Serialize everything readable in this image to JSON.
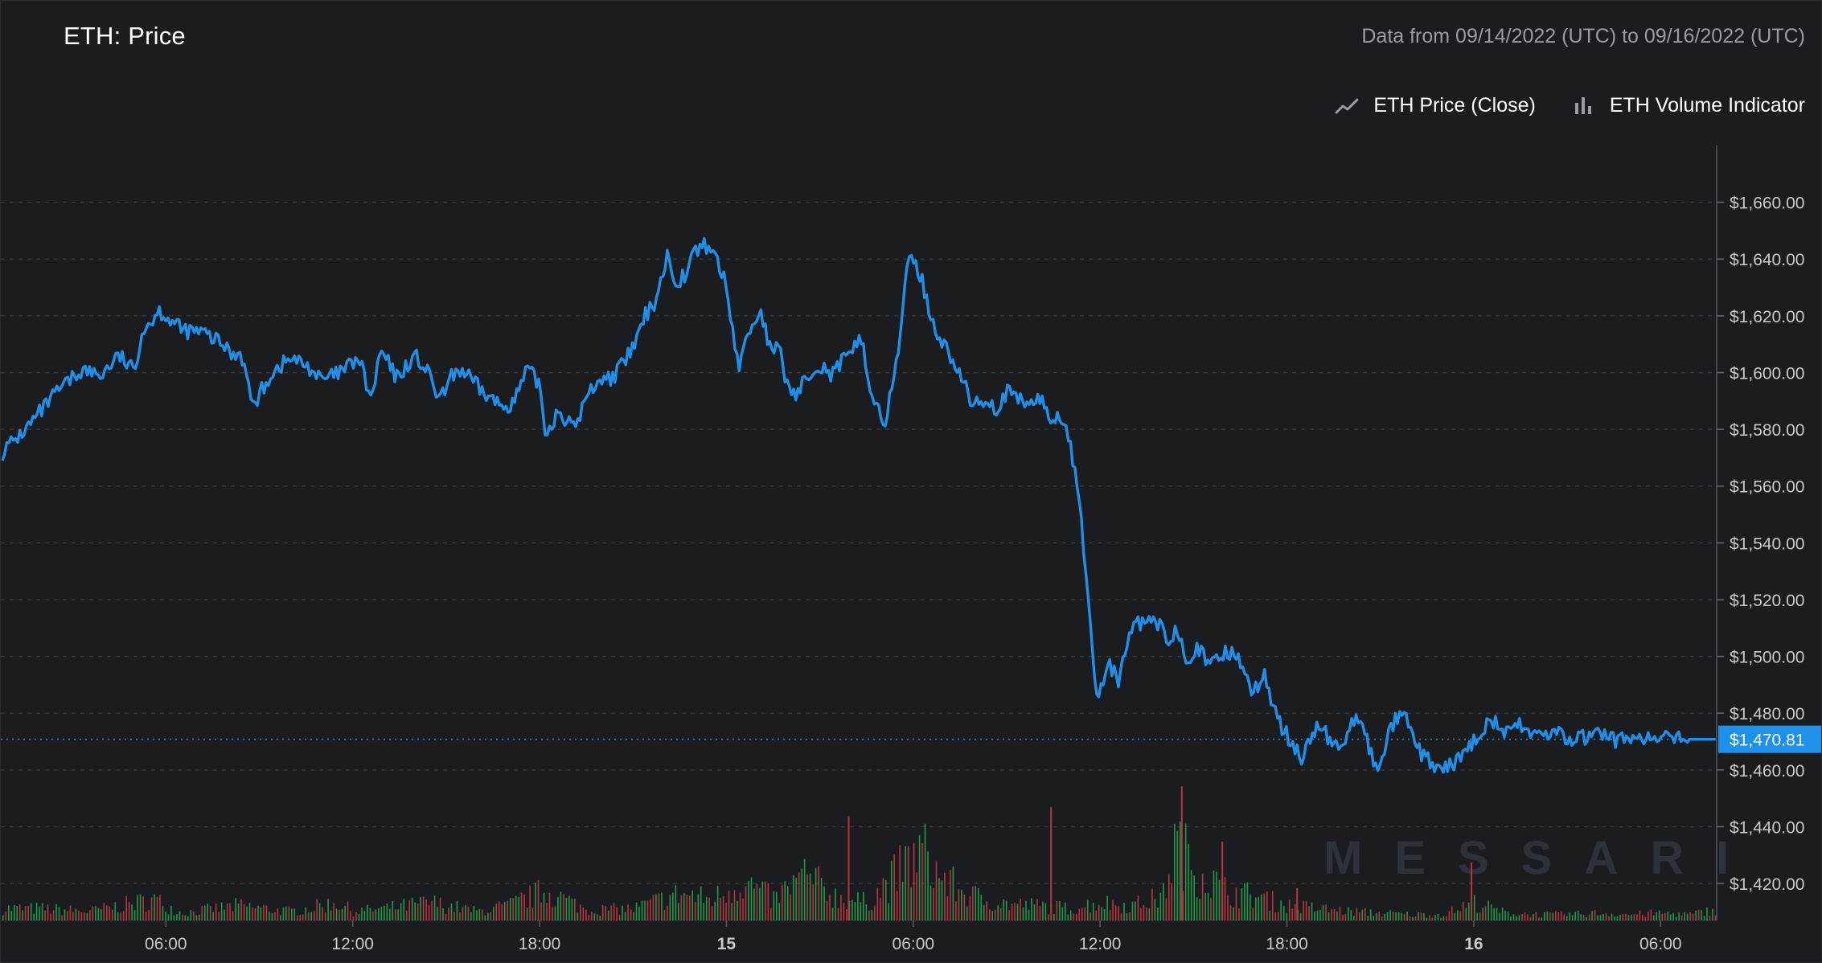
{
  "header": {
    "title": "ETH: Price",
    "range_text": "Data from 09/14/2022 (UTC) to 09/16/2022 (UTC)"
  },
  "legend": {
    "items": [
      {
        "label": "ETH Price (Close)",
        "icon": "line-chart-icon"
      },
      {
        "label": "ETH Volume Indicator",
        "icon": "bar-chart-icon"
      }
    ]
  },
  "watermark": "MESSARI",
  "colors": {
    "background": "#1b1c20",
    "price_line": "#1e90ea",
    "grid": "#3a3c43",
    "axis_text": "#c8c9cc",
    "volume_up": "#1f9a4a",
    "volume_down": "#b8363d",
    "last_price_tag": "#1e90ea"
  },
  "chart_data": {
    "type": "line",
    "y_axis": {
      "ticks": [
        "$1,660.00",
        "$1,640.00",
        "$1,620.00",
        "$1,600.00",
        "$1,580.00",
        "$1,560.00",
        "$1,540.00",
        "$1,520.00",
        "$1,500.00",
        "$1,480.00",
        "$1,460.00",
        "$1,440.00",
        "$1,420.00"
      ],
      "tick_values": [
        1660,
        1640,
        1620,
        1600,
        1580,
        1560,
        1540,
        1520,
        1500,
        1480,
        1460,
        1440,
        1420
      ],
      "range": [
        1407,
        1680
      ],
      "position": "right"
    },
    "x_axis": {
      "ticks": [
        {
          "label": "06:00",
          "hours": 6,
          "bold": false
        },
        {
          "label": "12:00",
          "hours": 12,
          "bold": false
        },
        {
          "label": "18:00",
          "hours": 18,
          "bold": false
        },
        {
          "label": "15",
          "hours": 24,
          "bold": true
        },
        {
          "label": "06:00",
          "hours": 30,
          "bold": false
        },
        {
          "label": "12:00",
          "hours": 36,
          "bold": false
        },
        {
          "label": "18:00",
          "hours": 42,
          "bold": false
        },
        {
          "label": "16",
          "hours": 48,
          "bold": true
        },
        {
          "label": "06:00",
          "hours": 54,
          "bold": false
        }
      ],
      "range_hours": [
        0.75,
        55.8
      ]
    },
    "last_price": {
      "label": "$1,470.81",
      "value": 1470.81
    },
    "grid": true,
    "series": [
      {
        "name": "ETH Price (Close)",
        "x_hours": [
          0.75,
          1.5,
          2.5,
          3.3,
          3.9,
          4.5,
          5.0,
          5.2,
          5.8,
          6.5,
          7.2,
          7.8,
          8.2,
          8.4,
          8.8,
          9.4,
          10,
          10.6,
          11,
          11.6,
          12.2,
          12.6,
          12.9,
          13.4,
          14,
          14.4,
          14.8,
          15.3,
          15.6,
          15.9,
          16.3,
          16.8,
          17.2,
          17.6,
          18.0,
          18.2,
          18.6,
          19.1,
          19.5,
          19.9,
          20.3,
          20.7,
          21.1,
          21.4,
          21.7,
          22.1,
          22.4,
          22.7,
          23.0,
          23.4,
          23.7,
          24.0,
          24.2,
          24.4,
          24.7,
          25.1,
          25.5,
          25.7,
          25.9,
          26.3,
          26.6,
          27.0,
          27.4,
          27.7,
          28.0,
          28.3,
          28.6,
          29.1,
          29.5,
          29.8,
          30.2,
          30.5,
          30.9,
          31.2,
          31.5,
          31.7,
          31.9,
          32.3,
          32.7,
          33.0,
          33.4,
          33.8,
          34.1,
          34.4,
          34.7,
          35.0,
          35.4,
          35.9,
          36.3,
          36.6,
          36.9,
          37.3,
          37.8,
          38.2,
          38.5,
          38.8,
          39.1,
          39.3,
          39.5,
          39.7,
          40.0,
          40.4,
          40.6,
          40.9,
          41.3,
          41.7,
          42.1,
          42.5,
          42.9,
          43.3,
          43.7,
          44.1,
          44.5,
          44.9,
          45.3,
          45.7,
          46.0,
          46.3,
          46.7,
          47.0,
          47.4,
          47.7,
          48.0,
          48.3,
          48.6,
          49.0,
          49.4,
          49.8,
          50.2,
          50.6,
          51.0,
          51.4,
          51.8,
          52.2,
          52.6,
          53.0,
          53.3,
          53.6,
          54.0,
          54.4,
          54.8,
          55.2,
          55.6,
          55.8
        ],
        "values": [
          1572,
          1580,
          1593,
          1601,
          1599,
          1606,
          1600,
          1614,
          1622,
          1615,
          1614,
          1610,
          1606,
          1608,
          1588,
          1600,
          1605,
          1602,
          1597,
          1600,
          1605,
          1590,
          1608,
          1598,
          1606,
          1600,
          1590,
          1601,
          1600,
          1596,
          1592,
          1588,
          1590,
          1601,
          1596,
          1578,
          1587,
          1580,
          1591,
          1598,
          1598,
          1603,
          1611,
          1620,
          1625,
          1641,
          1632,
          1635,
          1643,
          1645,
          1640,
          1630,
          1615,
          1602,
          1614,
          1622,
          1604,
          1612,
          1596,
          1592,
          1600,
          1603,
          1599,
          1604,
          1605,
          1615,
          1594,
          1582,
          1605,
          1640,
          1636,
          1622,
          1611,
          1606,
          1598,
          1595,
          1588,
          1591,
          1587,
          1593,
          1590,
          1589,
          1591,
          1583,
          1585,
          1578,
          1548,
          1484,
          1498,
          1490,
          1508,
          1512,
          1512,
          1506,
          1510,
          1499,
          1504,
          1500,
          1496,
          1498,
          1502,
          1500,
          1498,
          1487,
          1493,
          1478,
          1470,
          1464,
          1475,
          1472,
          1466,
          1479,
          1473,
          1458,
          1475,
          1480,
          1473,
          1465,
          1462,
          1459,
          1463,
          1466,
          1470,
          1475,
          1478,
          1472,
          1476,
          1474,
          1472,
          1473,
          1471,
          1471,
          1472,
          1473,
          1470,
          1472,
          1471,
          1470.81,
          1470.81,
          1470.81,
          1470.81,
          1470.81,
          1470.81,
          1470.81
        ]
      },
      {
        "name": "ETH Volume Indicator",
        "x_hours": [
          2,
          3.5,
          5.6,
          6.5,
          8.3,
          10,
          11.5,
          12,
          13,
          14.5,
          16,
          17,
          18.2,
          19.5,
          21,
          22.5,
          23.5,
          24.5,
          25.5,
          26.5,
          27.5,
          28.5,
          29.7,
          30.3,
          30.8,
          31.5,
          32.2,
          33,
          34,
          35,
          36,
          37,
          38,
          38.4,
          39,
          40,
          41,
          42,
          43,
          44,
          45,
          46,
          47,
          48,
          49,
          50,
          51,
          52,
          53,
          54,
          55,
          55.8
        ],
        "values": [
          0.08,
          0.06,
          0.14,
          0.05,
          0.1,
          0.06,
          0.12,
          0.06,
          0.08,
          0.12,
          0.06,
          0.1,
          0.2,
          0.07,
          0.08,
          0.18,
          0.14,
          0.26,
          0.14,
          0.3,
          0.16,
          0.12,
          0.36,
          0.46,
          0.3,
          0.2,
          0.14,
          0.11,
          0.1,
          0.08,
          0.12,
          0.1,
          0.16,
          0.52,
          0.36,
          0.2,
          0.16,
          0.1,
          0.08,
          0.06,
          0.05,
          0.04,
          0.04,
          0.12,
          0.05,
          0.04,
          0.04,
          0.05,
          0.04,
          0.05,
          0.04,
          0.08
        ]
      }
    ]
  }
}
